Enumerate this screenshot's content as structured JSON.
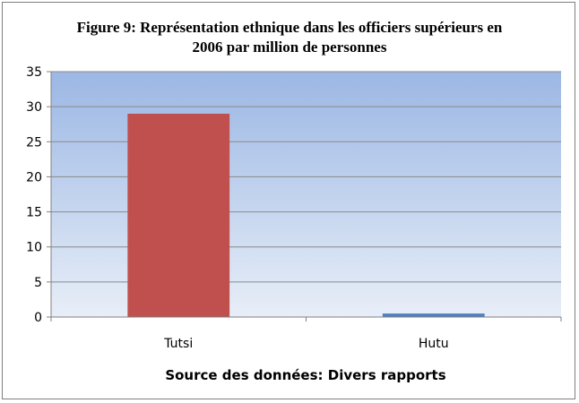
{
  "chart_data": {
    "type": "bar",
    "title_line1": "Figure 9: Représentation ethnique dans les officiers supérieurs en",
    "title_line2": "2006 par million de personnes",
    "xlabel": "Source des données: Divers rapports",
    "ylabel": "",
    "categories": [
      "Tutsi",
      "Hutu"
    ],
    "values": [
      29,
      0.5
    ],
    "bar_colors": [
      "#c0504d",
      "#4f81bd"
    ],
    "ylim": [
      0,
      35
    ],
    "yticks": [
      0,
      5,
      10,
      15,
      20,
      25,
      30,
      35
    ],
    "grid": true,
    "legend": "none",
    "plot_gradient": [
      "#9bb7e4",
      "#e8eef8"
    ]
  }
}
